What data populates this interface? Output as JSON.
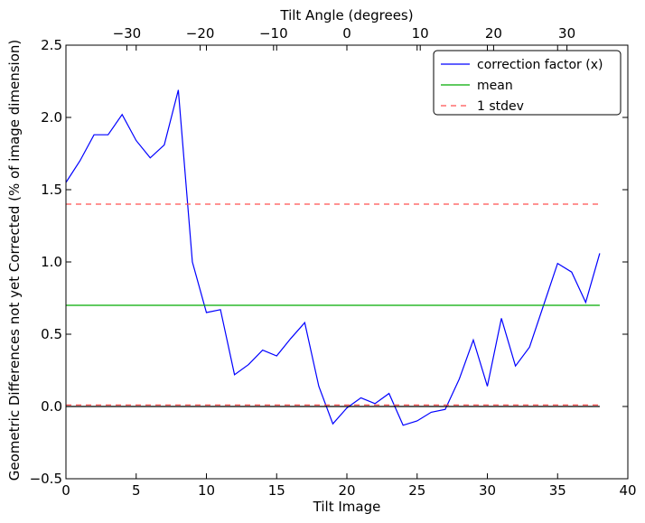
{
  "chart_data": {
    "type": "line",
    "xlabel": "Tilt Image",
    "ylabel": "Geometric Differences not yet Corrected (% of image dimension)",
    "x2label": "Tilt Angle (degrees)",
    "xlim": [
      0,
      40
    ],
    "ylim": [
      -0.5,
      2.5
    ],
    "x2lim": [
      -38.3,
      38.3
    ],
    "xticks": [
      0,
      5,
      10,
      15,
      20,
      25,
      30,
      35,
      40
    ],
    "yticks": [
      -0.5,
      0.0,
      0.5,
      1.0,
      1.5,
      2.0,
      2.5
    ],
    "x2ticks": [
      -30,
      -20,
      -10,
      0,
      10,
      20,
      30
    ],
    "xtick_labels": [
      "0",
      "5",
      "10",
      "15",
      "20",
      "25",
      "30",
      "35",
      "40"
    ],
    "ytick_labels": [
      "−0.5",
      "0.0",
      "0.5",
      "1.0",
      "1.5",
      "2.0",
      "2.5"
    ],
    "x2tick_labels": [
      "−30",
      "−20",
      "−10",
      "0",
      "10",
      "20",
      "30"
    ],
    "legend_position": "top-right",
    "grid": false,
    "series": [
      {
        "name": "correction factor (x)",
        "style": "solid",
        "color": "#0000ff",
        "x": [
          0,
          1,
          2,
          3,
          4,
          5,
          6,
          7,
          8,
          9,
          10,
          11,
          12,
          13,
          14,
          15,
          16,
          17,
          18,
          19,
          20,
          21,
          22,
          23,
          24,
          25,
          26,
          27,
          28,
          29,
          30,
          31,
          32,
          33,
          34,
          35,
          36,
          37,
          38
        ],
        "y": [
          1.55,
          1.7,
          1.88,
          1.88,
          2.02,
          1.84,
          1.72,
          1.81,
          2.19,
          1.0,
          0.65,
          0.67,
          0.22,
          0.29,
          0.39,
          0.35,
          0.47,
          0.58,
          0.14,
          -0.12,
          -0.01,
          0.06,
          0.02,
          0.09,
          -0.13,
          -0.1,
          -0.04,
          -0.02,
          0.19,
          0.46,
          0.14,
          0.61,
          0.28,
          0.41,
          0.7,
          0.99,
          0.93,
          0.72,
          1.06
        ]
      },
      {
        "name": "mean",
        "style": "solid",
        "color": "#00aa00",
        "x": [
          0,
          38
        ],
        "y": [
          0.7,
          0.7
        ]
      },
      {
        "name": "1 stdev",
        "style": "dashed",
        "color": "#ff5050",
        "x": [
          0,
          38
        ],
        "y": [
          1.4,
          1.4
        ]
      },
      {
        "name": "",
        "style": "dashed",
        "color": "#ff5050",
        "x": [
          0,
          38
        ],
        "y": [
          0.01,
          0.01
        ]
      },
      {
        "name": "",
        "style": "solid",
        "color": "#000000",
        "x": [
          0,
          38
        ],
        "y": [
          0.0,
          0.0
        ]
      }
    ]
  },
  "legend": [
    {
      "label": "correction factor (x)",
      "color": "#0000ff",
      "style": "solid"
    },
    {
      "label": "mean",
      "color": "#00aa00",
      "style": "solid"
    },
    {
      "label": "1 stdev",
      "color": "#ff5050",
      "style": "dashed"
    }
  ]
}
